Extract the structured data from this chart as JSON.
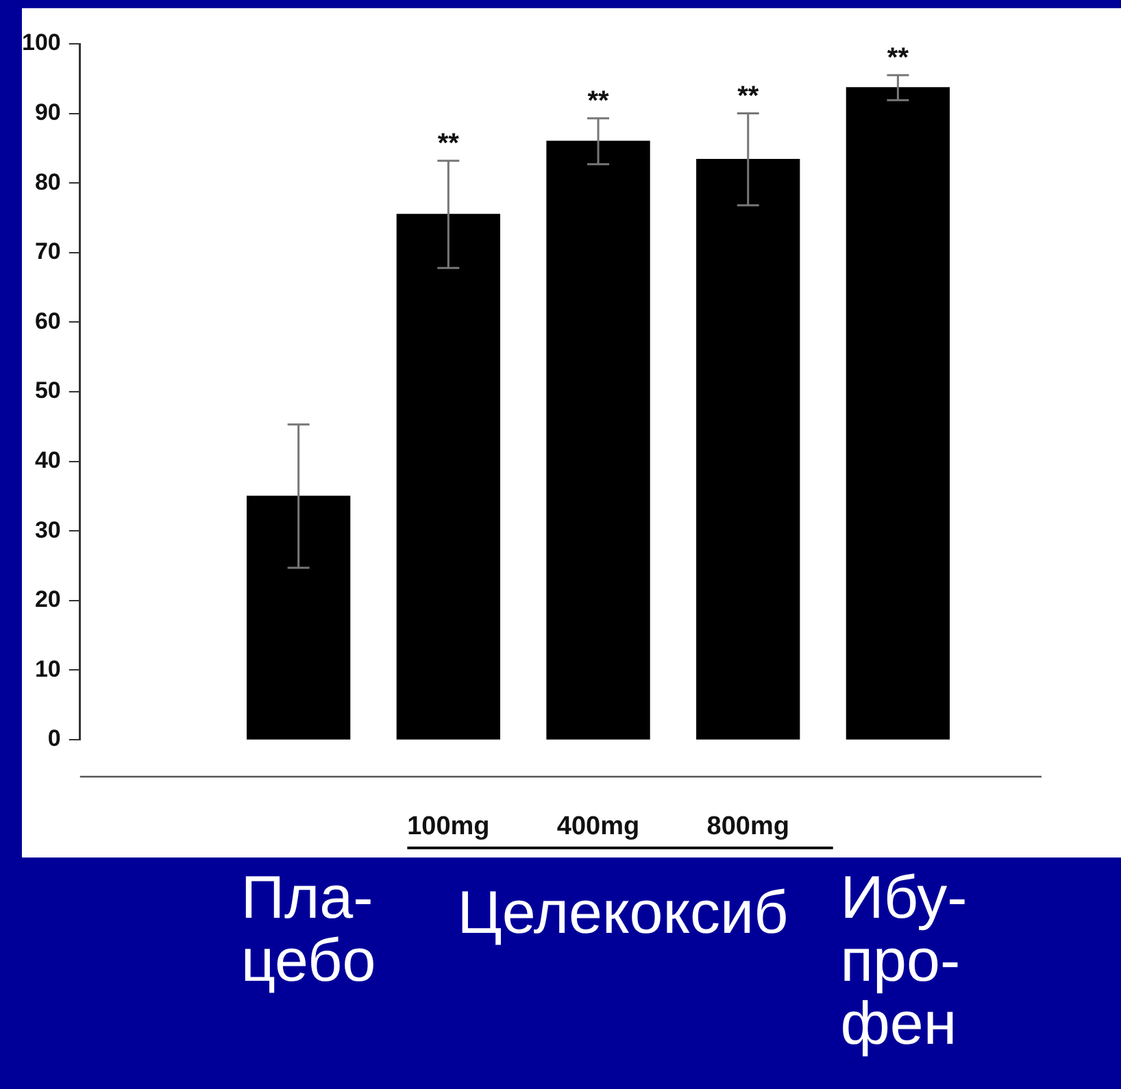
{
  "chart_data": {
    "type": "bar",
    "categories": [
      null,
      "100mg",
      "400mg",
      "800mg",
      null
    ],
    "values": [
      35,
      75.5,
      86,
      83.4,
      93.7
    ],
    "errors": [
      10.3,
      7.7,
      3.3,
      6.6,
      1.8
    ],
    "color": "#000000",
    "ylim": [
      0,
      100
    ],
    "yticks": [
      0,
      10,
      20,
      30,
      40,
      50,
      60,
      70,
      80,
      90,
      100
    ],
    "annotations": [
      "Пла-\nцебо",
      "Целекоксиб",
      "Ибу-\nпро-\nфен",
      {
        "text": "**",
        "x": "100mg",
        "y": 83.2
      },
      {
        "text": "**",
        "x": "400mg",
        "y": 89.3
      },
      {
        "text": "**",
        "x": "800mg",
        "y": 90
      },
      {
        "text": "**",
        "y": 95.5
      }
    ]
  }
}
